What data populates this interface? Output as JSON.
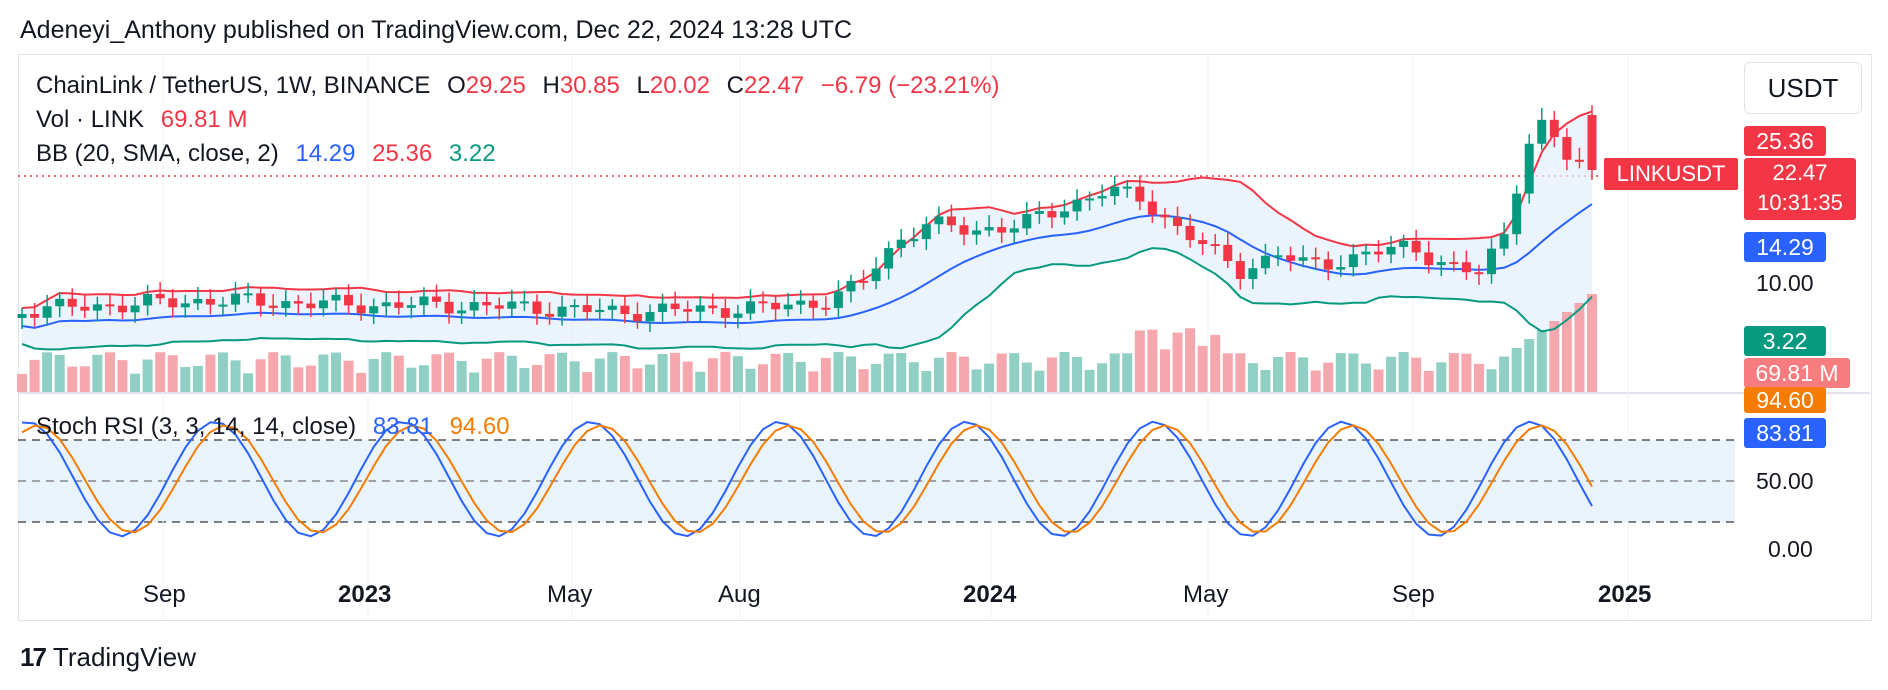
{
  "publisher_line": "Adeneyi_Anthony published on TradingView.com, Dec 22, 2024 13:28 UTC",
  "header": {
    "symbol": "ChainLink / TetherUS, 1W, BINANCE",
    "open_label": "O",
    "open": "29.25",
    "high_label": "H",
    "high": "30.85",
    "low_label": "L",
    "low": "20.02",
    "close_label": "C",
    "close": "22.47",
    "change": "−6.79 (−23.21%)"
  },
  "volume": {
    "label": "Vol · LINK",
    "value": "69.81 M"
  },
  "bb": {
    "label": "BB (20, SMA, close, 2)",
    "basis": "14.29",
    "upper": "25.36",
    "lower": "3.22"
  },
  "stoch": {
    "label": "Stoch RSI (3, 3, 14, 14, close)",
    "k": "83.81",
    "d": "94.60"
  },
  "currency_button": "USDT",
  "price_scale": {
    "upper_tag": "25.36",
    "close_tag": "22.47",
    "countdown": "10:31:35",
    "symbol_tag": "LINKUSDT",
    "basis_tag": "14.29",
    "level_10": "10.00",
    "lower_tag": "3.22",
    "vol_tag": "69.81 M",
    "stoch_d_tag": "94.60",
    "stoch_k_tag": "83.81",
    "level_50": "50.00",
    "level_0": "0.00"
  },
  "time_axis": {
    "sep1": "Sep",
    "y2023": "2023",
    "may1": "May",
    "aug": "Aug",
    "y2024": "2024",
    "may2": "May",
    "sep2": "Sep",
    "y2025": "2025"
  },
  "brand": "TradingView",
  "colors": {
    "up": "#089981",
    "down": "#f23645",
    "basis": "#2962ff",
    "upper": "#f23645",
    "lower": "#089981",
    "stoch_k": "#2962ff",
    "stoch_d": "#f57c00"
  },
  "chart_data": {
    "type": "candlestick",
    "symbol": "LINKUSDT",
    "timeframe": "1W",
    "x_range": [
      "2022-07",
      "2024-12"
    ],
    "y_scale": "log",
    "indicators": {
      "bollinger": {
        "basis": 14.29,
        "upper": 25.36,
        "lower": 3.22
      },
      "stoch_rsi": {
        "k": 83.81,
        "d": 94.6,
        "bands": [
          20,
          50,
          80
        ]
      }
    },
    "last_candle": {
      "open": 29.25,
      "high": 30.85,
      "low": 20.02,
      "close": 22.47
    }
  }
}
